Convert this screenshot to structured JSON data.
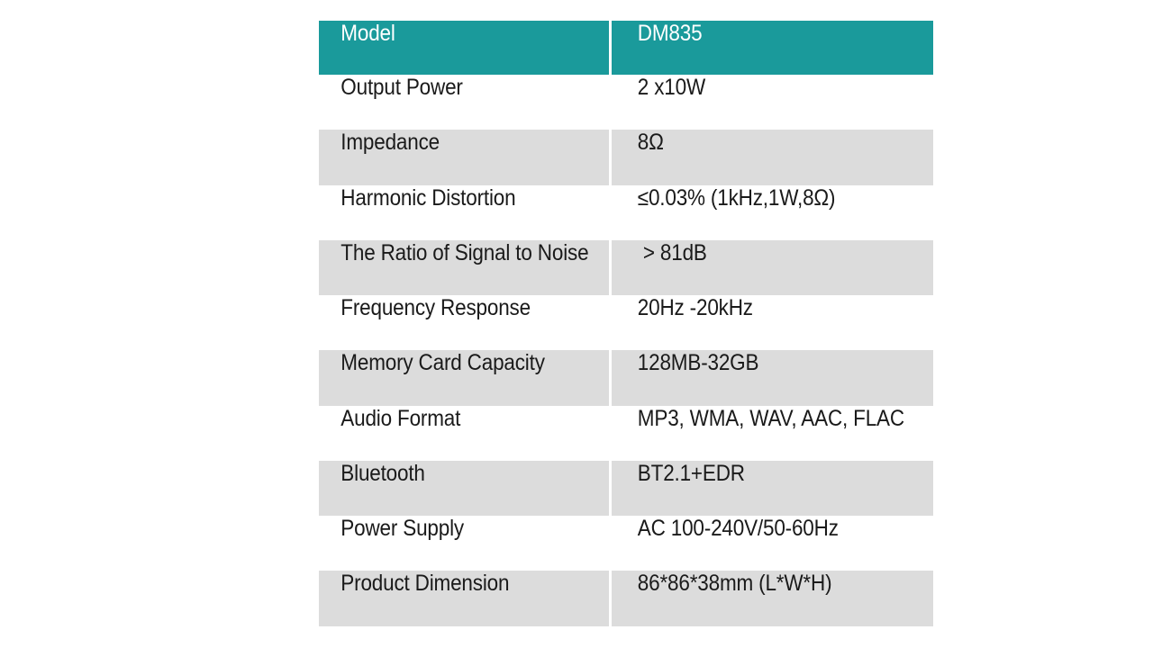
{
  "table": {
    "header": {
      "label": "Model",
      "value": "DM835"
    },
    "rows": [
      {
        "label": "Output Power",
        "value": "2 x10W"
      },
      {
        "label": "Impedance",
        "value": "8Ω"
      },
      {
        "label": "Harmonic Distortion",
        "value": "≤0.03% (1kHz,1W,8Ω)"
      },
      {
        "label": "The Ratio of Signal to Noise",
        "value": " > 81dB"
      },
      {
        "label": "Frequency Response",
        "value": "20Hz -20kHz"
      },
      {
        "label": "Memory Card Capacity",
        "value": "128MB-32GB"
      },
      {
        "label": "Audio Format",
        "value": "MP3, WMA, WAV, AAC, FLAC"
      },
      {
        "label": "Bluetooth",
        "value": "BT2.1+EDR"
      },
      {
        "label": "Power Supply",
        "value": "AC 100-240V/50-60Hz"
      },
      {
        "label": "Product Dimension",
        "value": "86*86*38mm (L*W*H)"
      }
    ]
  },
  "colors": {
    "header_bg": "#1a9a9b",
    "shaded_row_bg": "#dcdcdc",
    "plain_row_bg": "#ffffff"
  }
}
